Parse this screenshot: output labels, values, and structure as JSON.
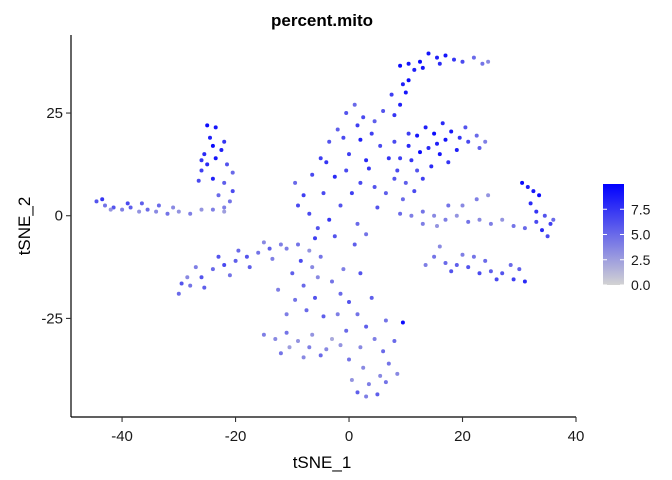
{
  "chart_data": {
    "type": "scatter",
    "title": "percent.mito",
    "xlabel": "tSNE_1",
    "ylabel": "tSNE_2",
    "xlim": [
      -49,
      40
    ],
    "ylim": [
      -49,
      44
    ],
    "xticks": [
      -40,
      -20,
      0,
      20,
      40
    ],
    "xtick_labels": [
      "-40",
      "-20",
      "0",
      "20",
      "40"
    ],
    "yticks": [
      -25,
      0,
      25
    ],
    "ytick_labels": [
      "-25",
      "0",
      "25"
    ],
    "grid": false,
    "legend": {
      "position": "right",
      "type": "colorbar",
      "ticks": [
        0,
        2.5,
        5,
        7.5
      ],
      "tick_labels": [
        "0.0",
        "2.5",
        "5.0",
        "7.5"
      ],
      "range": [
        0,
        10
      ],
      "low_color": "#d3d3d3",
      "high_color": "#0000ff"
    },
    "color_range": [
      0,
      10
    ],
    "low_color": "#d3d3d3",
    "high_color": "#0000ff",
    "points": [
      [
        -44.5,
        3.5,
        6.0
      ],
      [
        -43.0,
        2.5,
        4.5
      ],
      [
        -41.5,
        2.0,
        6.0
      ],
      [
        -40.0,
        1.5,
        4.0
      ],
      [
        -38.5,
        2.0,
        5.5
      ],
      [
        -37.0,
        1.0,
        3.0
      ],
      [
        -35.5,
        1.5,
        5.0
      ],
      [
        -34.0,
        1.0,
        3.5
      ],
      [
        -32.0,
        0.5,
        4.5
      ],
      [
        -30.0,
        1.0,
        3.0
      ],
      [
        -28.0,
        0.5,
        4.0
      ],
      [
        -26.0,
        1.5,
        3.0
      ],
      [
        -24.0,
        1.5,
        4.0
      ],
      [
        -22.0,
        1.0,
        2.5
      ],
      [
        -43.5,
        4.0,
        7.5
      ],
      [
        -42.0,
        1.5,
        3.0
      ],
      [
        -39.0,
        3.0,
        6.5
      ],
      [
        -36.5,
        3.0,
        5.5
      ],
      [
        -33.5,
        2.5,
        5.0
      ],
      [
        -31.0,
        2.0,
        3.5
      ],
      [
        -25.0,
        22.0,
        9.5
      ],
      [
        -23.5,
        21.5,
        9.0
      ],
      [
        -24.5,
        19.0,
        8.5
      ],
      [
        -22.0,
        18.0,
        7.5
      ],
      [
        -25.5,
        15.0,
        8.0
      ],
      [
        -23.5,
        14.0,
        9.0
      ],
      [
        -21.5,
        12.5,
        6.0
      ],
      [
        -26.0,
        11.0,
        7.0
      ],
      [
        -24.0,
        9.0,
        8.5
      ],
      [
        -22.0,
        8.0,
        5.5
      ],
      [
        -20.5,
        6.0,
        6.5
      ],
      [
        -23.0,
        5.0,
        5.0
      ],
      [
        -21.0,
        3.5,
        4.5
      ],
      [
        -26.5,
        8.5,
        6.5
      ],
      [
        -25.0,
        12.5,
        8.0
      ],
      [
        -22.5,
        16.0,
        8.5
      ],
      [
        -20.5,
        10.5,
        5.0
      ],
      [
        -24.0,
        17.0,
        9.5
      ],
      [
        -22.0,
        2.0,
        4.0
      ],
      [
        -26.0,
        13.5,
        7.5
      ],
      [
        -30.0,
        -19.0,
        5.0
      ],
      [
        -28.0,
        -17.0,
        4.5
      ],
      [
        -26.0,
        -15.0,
        6.0
      ],
      [
        -24.0,
        -13.0,
        5.0
      ],
      [
        -22.0,
        -12.0,
        6.5
      ],
      [
        -20.0,
        -11.0,
        5.5
      ],
      [
        -18.0,
        -10.0,
        6.0
      ],
      [
        -16.0,
        -9.0,
        4.5
      ],
      [
        -14.0,
        -8.0,
        5.5
      ],
      [
        -12.0,
        -7.0,
        4.0
      ],
      [
        -28.5,
        -15.0,
        3.5
      ],
      [
        -25.5,
        -17.5,
        5.5
      ],
      [
        -23.0,
        -10.0,
        6.0
      ],
      [
        -21.0,
        -14.5,
        4.5
      ],
      [
        -19.5,
        -8.5,
        5.0
      ],
      [
        -27.0,
        -12.5,
        4.0
      ],
      [
        -29.5,
        -16.5,
        6.0
      ],
      [
        -17.5,
        -12.5,
        5.5
      ],
      [
        -15.0,
        -6.5,
        3.5
      ],
      [
        -13.5,
        -10.5,
        4.0
      ],
      [
        -11.0,
        -8.0,
        4.0
      ],
      [
        -9.0,
        -7.0,
        4.5
      ],
      [
        -7.0,
        -8.5,
        3.0
      ],
      [
        -5.0,
        -10.0,
        4.5
      ],
      [
        -10.0,
        -14.0,
        5.5
      ],
      [
        -8.0,
        -17.0,
        5.0
      ],
      [
        -6.0,
        -20.0,
        6.0
      ],
      [
        -9.5,
        -20.5,
        4.5
      ],
      [
        -7.5,
        -23.0,
        5.0
      ],
      [
        -5.5,
        -15.0,
        3.5
      ],
      [
        -12.5,
        -18.0,
        4.0
      ],
      [
        -4.5,
        -24.5,
        5.5
      ],
      [
        -11.0,
        -24.0,
        4.0
      ],
      [
        -6.5,
        -12.5,
        3.5
      ],
      [
        -8.5,
        -11.0,
        6.5
      ],
      [
        -15.0,
        -29.0,
        4.0
      ],
      [
        -13.0,
        -30.0,
        3.5
      ],
      [
        -11.0,
        -28.5,
        4.5
      ],
      [
        -9.0,
        -30.5,
        3.0
      ],
      [
        -7.0,
        -32.0,
        4.0
      ],
      [
        -5.0,
        -34.0,
        5.0
      ],
      [
        -4.0,
        -32.5,
        3.5
      ],
      [
        -10.5,
        -32.0,
        2.5
      ],
      [
        -6.5,
        -29.0,
        3.0
      ],
      [
        -12.0,
        -33.5,
        4.5
      ],
      [
        -8.0,
        -34.5,
        3.5
      ],
      [
        -3.0,
        -30.0,
        2.0
      ],
      [
        -3.0,
        -16.0,
        4.5
      ],
      [
        -1.5,
        -19.0,
        5.0
      ],
      [
        0.0,
        -21.0,
        6.0
      ],
      [
        1.5,
        -24.0,
        4.5
      ],
      [
        3.0,
        -27.0,
        5.5
      ],
      [
        4.5,
        -30.0,
        4.0
      ],
      [
        6.0,
        -33.0,
        5.0
      ],
      [
        7.0,
        -36.0,
        4.5
      ],
      [
        5.5,
        -39.0,
        3.5
      ],
      [
        3.5,
        -41.0,
        4.0
      ],
      [
        1.5,
        -43.0,
        5.5
      ],
      [
        0.5,
        -40.0,
        3.0
      ],
      [
        2.5,
        -37.0,
        3.5
      ],
      [
        -0.5,
        -28.0,
        5.0
      ],
      [
        -2.0,
        -24.0,
        4.0
      ],
      [
        4.0,
        -20.0,
        5.5
      ],
      [
        6.5,
        -25.5,
        4.5
      ],
      [
        8.0,
        -30.5,
        5.0
      ],
      [
        2.0,
        -32.0,
        3.5
      ],
      [
        0.0,
        -35.0,
        4.5
      ],
      [
        -1.5,
        -31.5,
        3.0
      ],
      [
        3.0,
        -44.0,
        4.0
      ],
      [
        5.0,
        -43.5,
        5.5
      ],
      [
        6.5,
        -40.5,
        4.5
      ],
      [
        8.5,
        -38.5,
        3.5
      ],
      [
        9.5,
        -26.0,
        9.5
      ],
      [
        2.0,
        -14.0,
        6.0
      ],
      [
        -1.0,
        -13.0,
        4.0
      ],
      [
        -8.0,
        5.0,
        7.0
      ],
      [
        -6.5,
        10.0,
        6.5
      ],
      [
        -5.0,
        14.0,
        7.0
      ],
      [
        -3.5,
        18.0,
        6.0
      ],
      [
        -2.0,
        21.0,
        5.5
      ],
      [
        -0.5,
        25.0,
        6.0
      ],
      [
        1.0,
        27.0,
        5.0
      ],
      [
        2.5,
        24.0,
        6.5
      ],
      [
        4.0,
        20.0,
        7.0
      ],
      [
        5.5,
        17.0,
        6.5
      ],
      [
        7.0,
        14.0,
        7.5
      ],
      [
        -7.0,
        0.5,
        6.5
      ],
      [
        -5.5,
        -3.0,
        6.0
      ],
      [
        -3.5,
        -1.0,
        7.5
      ],
      [
        -1.5,
        2.5,
        6.0
      ],
      [
        0.5,
        5.5,
        7.0
      ],
      [
        2.0,
        8.0,
        6.5
      ],
      [
        3.5,
        11.5,
        7.5
      ],
      [
        5.0,
        2.0,
        6.0
      ],
      [
        6.5,
        5.5,
        5.5
      ],
      [
        8.0,
        9.0,
        6.0
      ],
      [
        1.5,
        -2.0,
        5.0
      ],
      [
        3.0,
        -4.5,
        4.5
      ],
      [
        -2.5,
        9.5,
        8.0
      ],
      [
        -4.5,
        5.5,
        6.5
      ],
      [
        0.0,
        15.0,
        7.0
      ],
      [
        -1.0,
        19.0,
        6.5
      ],
      [
        2.0,
        18.5,
        8.5
      ],
      [
        4.5,
        23.0,
        5.5
      ],
      [
        6.0,
        25.5,
        6.0
      ],
      [
        -9.5,
        8.0,
        5.0
      ],
      [
        -9.0,
        2.5,
        6.5
      ],
      [
        -6.0,
        -5.5,
        7.0
      ],
      [
        -2.5,
        -5.0,
        6.0
      ],
      [
        1.0,
        -7.0,
        5.5
      ],
      [
        3.0,
        13.5,
        8.0
      ],
      [
        -4.0,
        13.0,
        7.5
      ],
      [
        -0.5,
        11.0,
        6.5
      ],
      [
        1.5,
        22.0,
        7.0
      ],
      [
        4.5,
        7.0,
        6.0
      ],
      [
        9.0,
        14.0,
        7.0
      ],
      [
        10.5,
        17.0,
        8.0
      ],
      [
        12.0,
        19.5,
        9.0
      ],
      [
        13.5,
        21.5,
        8.5
      ],
      [
        15.0,
        20.0,
        9.5
      ],
      [
        16.5,
        22.5,
        8.0
      ],
      [
        18.0,
        20.5,
        9.0
      ],
      [
        19.5,
        19.0,
        7.5
      ],
      [
        21.0,
        18.0,
        6.5
      ],
      [
        22.5,
        19.5,
        5.0
      ],
      [
        24.0,
        18.0,
        4.0
      ],
      [
        8.5,
        11.0,
        6.5
      ],
      [
        10.0,
        8.0,
        5.5
      ],
      [
        11.5,
        6.0,
        6.5
      ],
      [
        13.0,
        9.0,
        7.0
      ],
      [
        14.5,
        12.0,
        8.0
      ],
      [
        16.0,
        15.0,
        9.0
      ],
      [
        17.5,
        13.0,
        7.5
      ],
      [
        19.0,
        16.0,
        8.5
      ],
      [
        11.0,
        13.5,
        7.5
      ],
      [
        9.5,
        4.0,
        5.0
      ],
      [
        12.5,
        15.5,
        9.5
      ],
      [
        15.5,
        17.5,
        8.5
      ],
      [
        20.5,
        21.5,
        6.0
      ],
      [
        23.0,
        16.5,
        5.5
      ],
      [
        17.0,
        18.5,
        9.0
      ],
      [
        14.0,
        16.5,
        8.0
      ],
      [
        10.5,
        20.0,
        7.0
      ],
      [
        8.0,
        18.0,
        6.5
      ],
      [
        12.0,
        11.0,
        6.0
      ],
      [
        8.0,
        24.5,
        7.5
      ],
      [
        9.0,
        27.0,
        8.5
      ],
      [
        10.0,
        30.0,
        9.0
      ],
      [
        10.5,
        33.0,
        9.5
      ],
      [
        9.0,
        36.5,
        9.5
      ],
      [
        10.5,
        37.0,
        9.0
      ],
      [
        12.5,
        37.5,
        9.5
      ],
      [
        14.0,
        39.5,
        9.0
      ],
      [
        15.5,
        38.5,
        8.5
      ],
      [
        17.0,
        39.0,
        9.0
      ],
      [
        18.5,
        38.0,
        7.5
      ],
      [
        20.0,
        37.5,
        6.5
      ],
      [
        22.0,
        38.5,
        5.0
      ],
      [
        23.5,
        37.0,
        4.5
      ],
      [
        24.5,
        37.5,
        3.5
      ],
      [
        11.5,
        35.5,
        8.5
      ],
      [
        13.0,
        36.0,
        9.0
      ],
      [
        16.0,
        37.0,
        8.0
      ],
      [
        7.5,
        29.5,
        7.0
      ],
      [
        9.5,
        32.0,
        8.5
      ],
      [
        9.0,
        0.5,
        5.0
      ],
      [
        11.0,
        0.0,
        4.0
      ],
      [
        13.0,
        1.0,
        4.5
      ],
      [
        15.0,
        0.0,
        3.5
      ],
      [
        17.0,
        -1.0,
        4.0
      ],
      [
        19.0,
        0.0,
        3.0
      ],
      [
        21.0,
        -1.5,
        4.5
      ],
      [
        23.0,
        -1.0,
        3.5
      ],
      [
        25.0,
        -2.0,
        4.0
      ],
      [
        27.0,
        -1.0,
        3.0
      ],
      [
        29.0,
        -2.5,
        4.5
      ],
      [
        31.0,
        -3.0,
        5.0
      ],
      [
        20.0,
        2.5,
        3.5
      ],
      [
        22.5,
        4.0,
        4.0
      ],
      [
        24.5,
        5.0,
        3.0
      ],
      [
        17.5,
        2.5,
        4.5
      ],
      [
        15.5,
        -2.5,
        3.0
      ],
      [
        13.0,
        -2.0,
        4.0
      ],
      [
        30.5,
        8.0,
        9.5
      ],
      [
        31.5,
        7.0,
        8.5
      ],
      [
        32.5,
        6.0,
        9.0
      ],
      [
        33.5,
        5.0,
        9.5
      ],
      [
        32.0,
        3.0,
        8.0
      ],
      [
        33.0,
        1.0,
        7.5
      ],
      [
        34.5,
        0.0,
        6.0
      ],
      [
        35.5,
        -2.0,
        7.0
      ],
      [
        34.0,
        -3.5,
        8.0
      ],
      [
        35.0,
        -5.0,
        6.5
      ],
      [
        36.0,
        -1.0,
        5.0
      ],
      [
        33.0,
        -1.5,
        6.5
      ],
      [
        15.0,
        -10.0,
        4.5
      ],
      [
        17.0,
        -11.5,
        5.0
      ],
      [
        19.0,
        -12.0,
        5.5
      ],
      [
        21.0,
        -12.5,
        6.0
      ],
      [
        23.0,
        -14.0,
        6.5
      ],
      [
        25.0,
        -13.5,
        5.5
      ],
      [
        27.0,
        -14.0,
        6.0
      ],
      [
        29.0,
        -15.5,
        7.0
      ],
      [
        30.0,
        -13.0,
        5.5
      ],
      [
        31.0,
        -16.0,
        8.0
      ],
      [
        20.0,
        -9.5,
        4.0
      ],
      [
        22.0,
        -10.0,
        4.5
      ],
      [
        24.0,
        -11.0,
        5.0
      ],
      [
        18.0,
        -13.5,
        6.0
      ],
      [
        26.0,
        -15.5,
        6.5
      ],
      [
        13.5,
        -12.0,
        4.0
      ],
      [
        16.0,
        -7.5,
        3.5
      ],
      [
        28.5,
        -12.0,
        5.0
      ]
    ]
  }
}
